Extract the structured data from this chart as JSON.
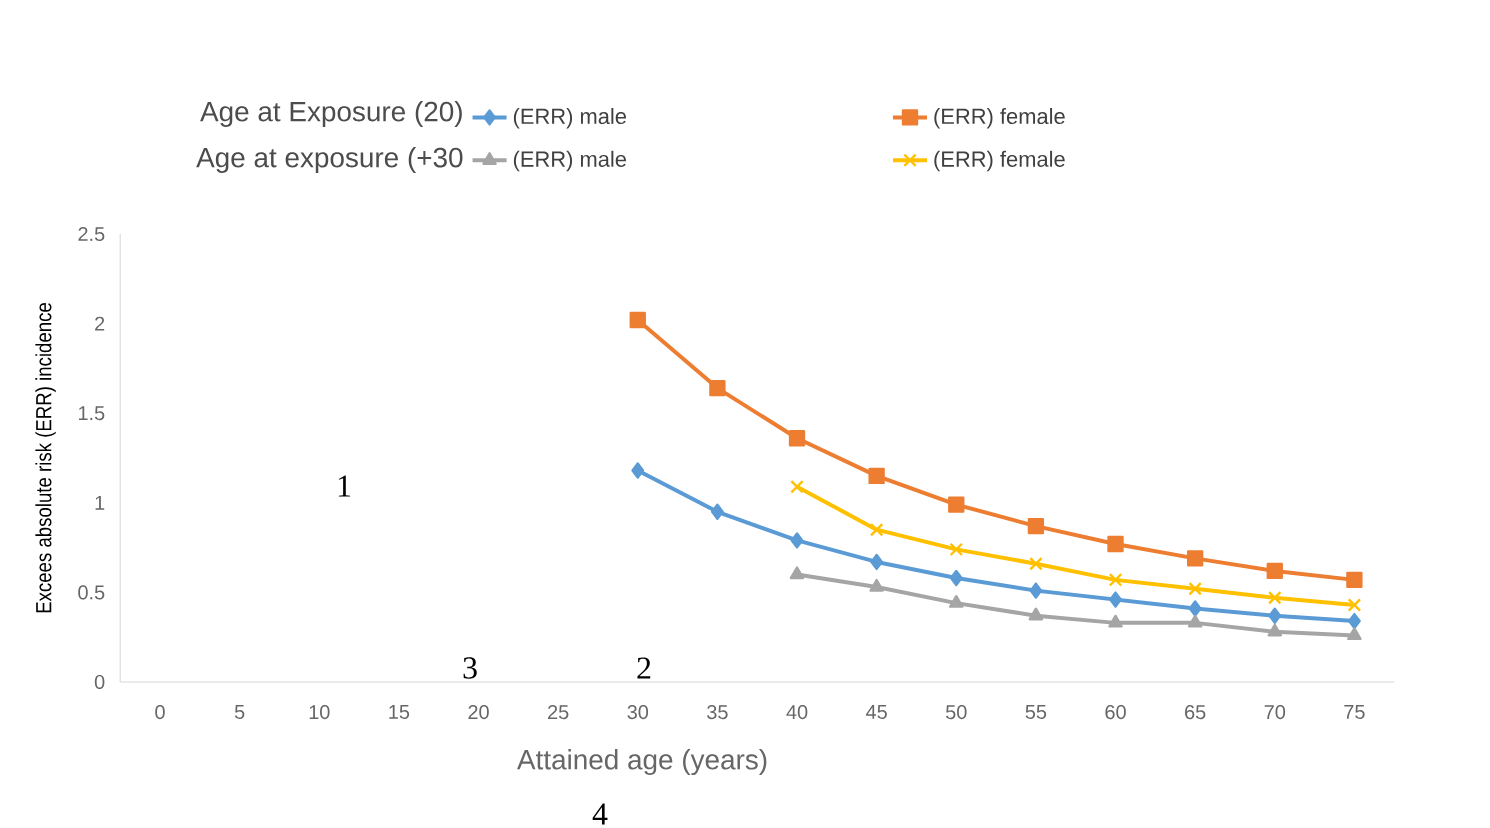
{
  "chart_data": {
    "type": "line",
    "xlabel": "Attained age (years)",
    "ylabel": "Excees absolute  risk (ERR) incidence",
    "categories": [
      "0",
      "5",
      "10",
      "15",
      "20",
      "25",
      "30",
      "35",
      "40",
      "45",
      "50",
      "55",
      "60",
      "65",
      "70",
      "75"
    ],
    "series": [
      {
        "name": "(ERR) male",
        "color": "#5b9bd5",
        "marker": "diamond",
        "values": [
          null,
          null,
          null,
          null,
          null,
          null,
          1.18,
          0.95,
          0.79,
          0.67,
          0.58,
          0.51,
          0.46,
          0.41,
          0.37,
          0.34
        ]
      },
      {
        "name": "(ERR)  female",
        "color": "#ed7d31",
        "marker": "square",
        "values": [
          null,
          null,
          null,
          null,
          null,
          null,
          2.02,
          1.64,
          1.36,
          1.15,
          0.99,
          0.87,
          0.77,
          0.69,
          0.62,
          0.57
        ]
      },
      {
        "name": "(ERR) male",
        "color": "#a5a5a5",
        "marker": "triangle",
        "values": [
          null,
          null,
          null,
          null,
          null,
          null,
          null,
          null,
          0.6,
          0.53,
          0.44,
          0.37,
          0.33,
          0.33,
          0.28,
          0.26
        ]
      },
      {
        "name": "(ERR) female",
        "color": "#ffc000",
        "marker": "cross",
        "values": [
          null,
          null,
          null,
          null,
          null,
          null,
          null,
          null,
          1.09,
          0.85,
          0.74,
          0.66,
          0.57,
          0.52,
          0.47,
          0.43
        ]
      }
    ],
    "ylim": [
      0,
      2.5
    ],
    "yticks": [
      0,
      0.5,
      1,
      1.5,
      2,
      2.5
    ],
    "grid": false,
    "legend": "top",
    "annotations": [
      "Age at Exposure (20)",
      "Age at exposure (+30",
      "1",
      "3",
      "2",
      "4"
    ]
  }
}
